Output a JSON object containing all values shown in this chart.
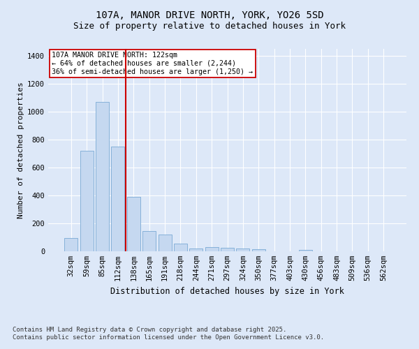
{
  "title1": "107A, MANOR DRIVE NORTH, YORK, YO26 5SD",
  "title2": "Size of property relative to detached houses in York",
  "xlabel": "Distribution of detached houses by size in York",
  "ylabel": "Number of detached properties",
  "categories": [
    "32sqm",
    "59sqm",
    "85sqm",
    "112sqm",
    "138sqm",
    "165sqm",
    "191sqm",
    "218sqm",
    "244sqm",
    "271sqm",
    "297sqm",
    "324sqm",
    "350sqm",
    "377sqm",
    "403sqm",
    "430sqm",
    "456sqm",
    "483sqm",
    "509sqm",
    "536sqm",
    "562sqm"
  ],
  "values": [
    95,
    720,
    1070,
    750,
    390,
    145,
    120,
    55,
    20,
    30,
    25,
    20,
    15,
    0,
    0,
    10,
    0,
    0,
    0,
    0,
    0
  ],
  "bar_color": "#c5d8f0",
  "bar_edge_color": "#7aaad4",
  "vline_x": 3.5,
  "vline_color": "#cc0000",
  "annotation_text": "107A MANOR DRIVE NORTH: 122sqm\n← 64% of detached houses are smaller (2,244)\n36% of semi-detached houses are larger (1,250) →",
  "annotation_box_color": "#ffffff",
  "annotation_box_edge_color": "#cc0000",
  "ylim": [
    0,
    1450
  ],
  "yticks": [
    0,
    200,
    400,
    600,
    800,
    1000,
    1200,
    1400
  ],
  "footnote1": "Contains HM Land Registry data © Crown copyright and database right 2025.",
  "footnote2": "Contains public sector information licensed under the Open Government Licence v3.0.",
  "bg_color": "#dde8f8",
  "plot_bg_color": "#dde8f8",
  "grid_color": "#ffffff",
  "title_fontsize": 10,
  "subtitle_fontsize": 9,
  "axis_label_fontsize": 8,
  "tick_fontsize": 7.5,
  "footnote_fontsize": 6.5
}
